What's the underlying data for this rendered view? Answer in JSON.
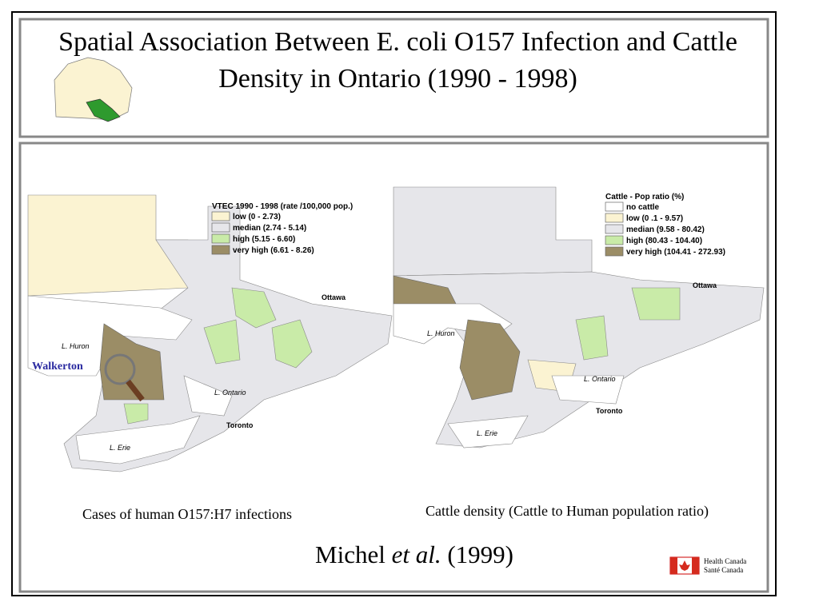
{
  "header": {
    "title": "Spatial Association Between E. coli O157 Infection and Cattle Density in Ontario (1990 - 1998)"
  },
  "maps": [
    {
      "legend_title": "VTEC 1990 - 1998 (rate /100,000 pop.)",
      "legend": [
        {
          "label": "low (0 - 2.73)",
          "color": "#fbf3d2"
        },
        {
          "label": "median (2.74 - 5.14)",
          "color": "#e6e6ea"
        },
        {
          "label": "high (5.15 - 6.60)",
          "color": "#c9eba8"
        },
        {
          "label": "very high (6.61 - 8.26)",
          "color": "#9b8d66"
        }
      ],
      "labels": [
        "L. Huron",
        "Walkerton",
        "L. Ontario",
        "Toronto",
        "L. Erie",
        "Ottawa"
      ],
      "caption": "Cases of human O157:H7 infections"
    },
    {
      "legend_title": "Cattle - Pop ratio (%)",
      "legend": [
        {
          "label": "no cattle",
          "color": "#ffffff"
        },
        {
          "label": "low (0 .1 - 9.57)",
          "color": "#fbf3d2"
        },
        {
          "label": "median (9.58 - 80.42)",
          "color": "#e6e6ea"
        },
        {
          "label": "high (80.43 - 104.40)",
          "color": "#c9eba8"
        },
        {
          "label": "very high (104.41 - 272.93)",
          "color": "#9b8d66"
        }
      ],
      "labels": [
        "L. Huron",
        "L. Ontario",
        "Toronto",
        "L. Erie",
        "Ottawa"
      ],
      "caption": "Cattle density (Cattle to Human population ratio)"
    }
  ],
  "citation": {
    "author": "Michel",
    "etal": "et al.",
    "year": "(1999)"
  },
  "logo": {
    "line1": "Health Canada",
    "line2": "Santé Canada"
  }
}
